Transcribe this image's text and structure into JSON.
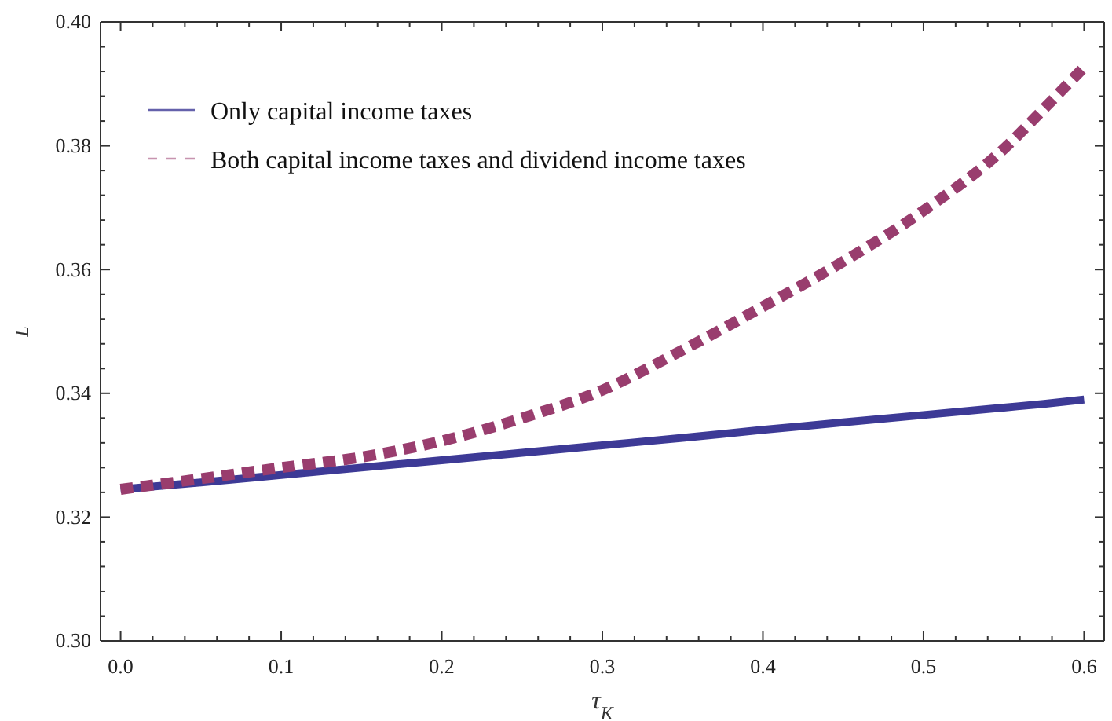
{
  "chart_data": {
    "type": "line",
    "xlabel": "τ$_{K}$",
    "ylabel": "L",
    "xlim": [
      -0.0125,
      0.6125
    ],
    "ylim": [
      0.3,
      0.4
    ],
    "xticks": [
      {
        "value": 0,
        "label": "0.0"
      },
      {
        "value": 0.02,
        "label": null
      },
      {
        "value": 0.04,
        "label": null
      },
      {
        "value": 0.06,
        "label": null
      },
      {
        "value": 0.08,
        "label": null
      },
      0.1,
      {
        "value": 0.12,
        "label": null
      },
      {
        "value": 0.14,
        "label": null
      },
      {
        "value": 0.16,
        "label": null
      },
      {
        "value": 0.18,
        "label": null
      },
      0.2,
      {
        "value": 0.22,
        "label": null
      },
      {
        "value": 0.24,
        "label": null
      },
      {
        "value": 0.26,
        "label": null
      },
      {
        "value": 0.28,
        "label": null
      },
      0.3,
      {
        "value": 0.32,
        "label": null
      },
      {
        "value": 0.34,
        "label": null
      },
      {
        "value": 0.36,
        "label": null
      },
      {
        "value": 0.38,
        "label": null
      },
      0.4,
      {
        "value": 0.42,
        "label": null
      },
      {
        "value": 0.44,
        "label": null
      },
      {
        "value": 0.46,
        "label": null
      },
      {
        "value": 0.48,
        "label": null
      },
      0.5,
      {
        "value": 0.52,
        "label": null
      },
      {
        "value": 0.54,
        "label": null
      },
      {
        "value": 0.56,
        "label": null
      },
      {
        "value": 0.58,
        "label": null
      },
      0.6
    ],
    "yticks": [
      {
        "value": 0.3,
        "label": "0.30"
      },
      {
        "value": 0.304,
        "label": null
      },
      {
        "value": 0.308,
        "label": null
      },
      {
        "value": 0.312,
        "label": null
      },
      {
        "value": 0.316,
        "label": null
      },
      {
        "value": 0.32,
        "label": "0.32"
      },
      {
        "value": 0.324,
        "label": null
      },
      {
        "value": 0.328,
        "label": null
      },
      {
        "value": 0.332,
        "label": null
      },
      {
        "value": 0.336,
        "label": null
      },
      {
        "value": 0.34,
        "label": "0.34"
      },
      {
        "value": 0.344,
        "label": null
      },
      {
        "value": 0.348,
        "label": null
      },
      {
        "value": 0.352,
        "label": null
      },
      {
        "value": 0.356,
        "label": null
      },
      {
        "value": 0.36,
        "label": "0.36"
      },
      {
        "value": 0.364,
        "label": null
      },
      {
        "value": 0.368,
        "label": null
      },
      {
        "value": 0.372,
        "label": null
      },
      {
        "value": 0.376,
        "label": null
      },
      {
        "value": 0.38,
        "label": "0.38"
      },
      {
        "value": 0.384,
        "label": null
      },
      {
        "value": 0.388,
        "label": null
      },
      {
        "value": 0.392,
        "label": null
      },
      {
        "value": 0.396,
        "label": null
      },
      {
        "value": 0.4,
        "label": "0.40"
      }
    ],
    "x": [
      0,
      0.05,
      0.1,
      0.15,
      0.2,
      0.25,
      0.3,
      0.35,
      0.4,
      0.45,
      0.5,
      0.55,
      0.575,
      0.6
    ],
    "grid": false,
    "legend": "top left",
    "marker": "none",
    "series": [
      {
        "name": "Only capital income taxes",
        "color": "#3d3a96",
        "line_style": "solid",
        "values": [
          0.3245,
          0.3256,
          0.3268,
          0.328,
          0.3292,
          0.3304,
          0.3316,
          0.3328,
          0.3341,
          0.3353,
          0.3365,
          0.3377,
          0.3383,
          0.339
        ]
      },
      {
        "name": "Both capital income taxes and dividend income taxes",
        "color": "#993d6e",
        "line_style": "dashed",
        "values": [
          0.3245,
          0.3262,
          0.328,
          0.3297,
          0.3323,
          0.336,
          0.3405,
          0.347,
          0.354,
          0.3613,
          0.3695,
          0.3795,
          0.386,
          0.3927
        ]
      }
    ]
  }
}
